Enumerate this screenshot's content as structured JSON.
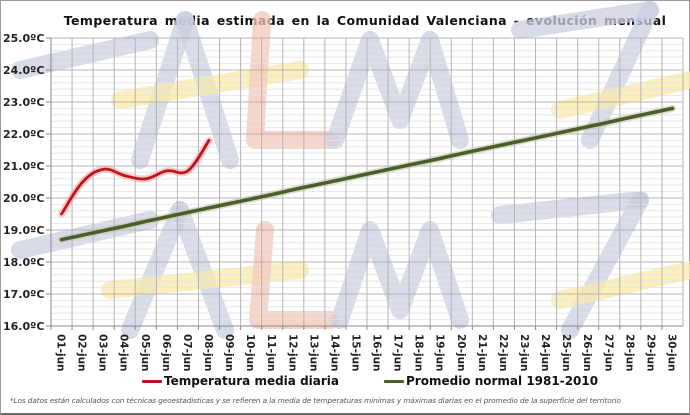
{
  "header": {
    "title": "Temperatura media estimada en la Comunidad Valenciana - evolución mensual"
  },
  "watermark": {
    "text": "AEMeT",
    "colors": {
      "blue": "#c9cfe0",
      "red": "#f3c6b8",
      "yellow": "#fbe9a8"
    }
  },
  "legend": {
    "items": [
      {
        "label": "Temperatura media diaria",
        "color": "#c0141c"
      },
      {
        "label": "Promedio normal 1981-2010",
        "color": "#4a5e2a"
      }
    ]
  },
  "footnote": "*Los datos están calculados con técnicas geoestadísticas y se refieren a la media de temperaturas mínimas y máximas diarias en el promedio de la superficie del territorio",
  "chart_data": {
    "type": "line",
    "title": "Temperatura media estimada en la Comunidad Valenciana - evolución mensual",
    "xlabel": "",
    "ylabel": "",
    "ylim": [
      16.0,
      25.0
    ],
    "yticks": [
      "16.0ºC",
      "17.0ºC",
      "18.0ºC",
      "19.0ºC",
      "20.0ºC",
      "21.0ºC",
      "22.0ºC",
      "23.0ºC",
      "24.0ºC",
      "25.0ºC"
    ],
    "grid": true,
    "legend_position": "bottom",
    "categories": [
      "01-jun.",
      "02-jun.",
      "03-jun.",
      "04-jun.",
      "05-jun.",
      "06-jun.",
      "07-jun.",
      "08-jun.",
      "09-jun.",
      "10-jun.",
      "11-jun.",
      "12-jun.",
      "13-jun.",
      "14-jun.",
      "15-jun.",
      "16-jun.",
      "17-jun.",
      "18-jun.",
      "19-jun.",
      "20-jun.",
      "21-jun.",
      "22-jun.",
      "23-jun.",
      "24-jun.",
      "25-jun.",
      "26-jun.",
      "27-jun.",
      "28-jun.",
      "29-jun.",
      "30-jun."
    ],
    "series": [
      {
        "name": "Temperatura media diaria",
        "color": "#c0141c",
        "values": [
          19.5,
          20.5,
          20.9,
          20.7,
          20.6,
          20.85,
          20.85,
          21.8,
          null,
          null,
          null,
          null,
          null,
          null,
          null,
          null,
          null,
          null,
          null,
          null,
          null,
          null,
          null,
          null,
          null,
          null,
          null,
          null,
          null,
          null
        ]
      },
      {
        "name": "Promedio normal 1981-2010",
        "color": "#4a5e2a",
        "values": [
          18.7,
          18.84,
          18.98,
          19.12,
          19.27,
          19.41,
          19.55,
          19.69,
          19.83,
          19.97,
          20.11,
          20.26,
          20.4,
          20.54,
          20.68,
          20.82,
          20.96,
          21.1,
          21.24,
          21.39,
          21.53,
          21.67,
          21.81,
          21.95,
          22.09,
          22.23,
          22.37,
          22.52,
          22.66,
          22.8
        ]
      }
    ]
  }
}
